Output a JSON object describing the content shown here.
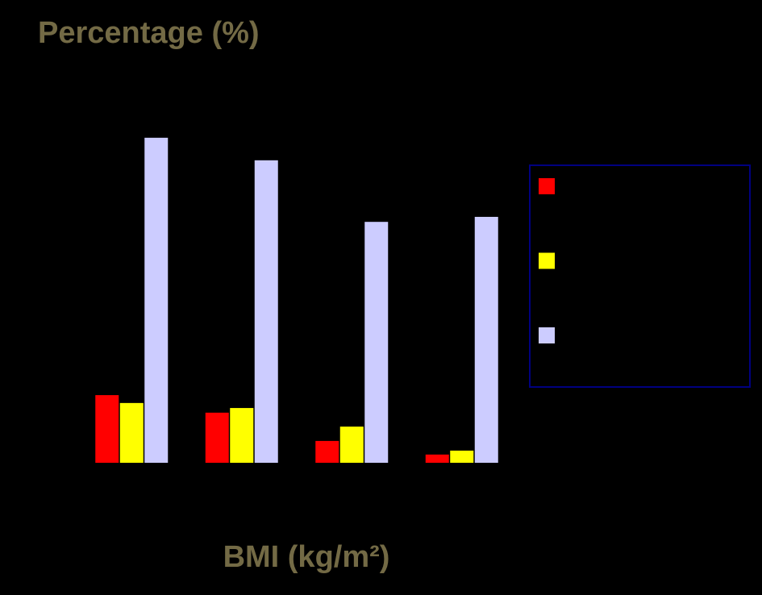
{
  "chart_data": {
    "type": "bar",
    "y_label": "Percentage (%)",
    "x_label": "BMI (kg/m²)",
    "categories": [
      null,
      null,
      null,
      null
    ],
    "series": [
      {
        "color": "#ff0000",
        "values": [
          18.9,
          14.0,
          6.1,
          2.3
        ]
      },
      {
        "color": "#ffff00",
        "values": [
          16.7,
          15.3,
          10.1,
          3.4
        ]
      },
      {
        "color": "#ccccff",
        "values": [
          90.8,
          84.5,
          67.3,
          68.7
        ]
      }
    ],
    "ylim": [
      0,
      100
    ]
  }
}
